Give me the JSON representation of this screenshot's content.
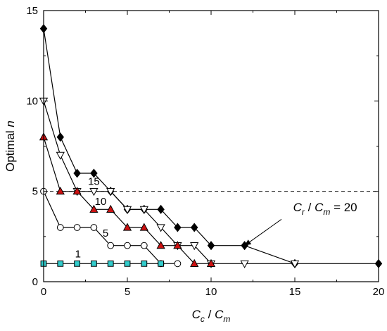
{
  "chart_data": {
    "type": "line",
    "xlabel": {
      "main": "C",
      "sub1": "c",
      "sep": " / ",
      "main2": "C",
      "sub2": "m"
    },
    "ylabel": {
      "prefix": "Optimal ",
      "var": "n"
    },
    "xlim": [
      0,
      20
    ],
    "ylim": [
      0,
      15
    ],
    "xticks": [
      0,
      5,
      10,
      15,
      20
    ],
    "yticks": [
      0,
      5,
      10,
      15
    ],
    "grid": false,
    "reference_line": {
      "y": 5,
      "style": "dashed"
    },
    "series": [
      {
        "label": "20",
        "marker": "diamond",
        "fill": "#000000",
        "stroke": "#000000",
        "x": [
          0,
          1,
          2,
          3,
          4,
          5,
          6,
          7,
          8,
          9,
          10,
          12,
          15,
          20
        ],
        "y": [
          14,
          8,
          6,
          6,
          5,
          4,
          4,
          4,
          3,
          3,
          2,
          2,
          1,
          1
        ]
      },
      {
        "label": "15",
        "marker": "triangle-down",
        "fill": "#ffffff",
        "stroke": "#000000",
        "x": [
          0,
          1,
          2,
          3,
          4,
          5,
          6,
          7,
          8,
          9,
          10,
          12,
          15
        ],
        "y": [
          10,
          7,
          5,
          5,
          5,
          4,
          4,
          3,
          2,
          2,
          1,
          1,
          1
        ]
      },
      {
        "label": "10",
        "marker": "triangle-up",
        "fill": "#cc1111",
        "stroke": "#000000",
        "x": [
          0,
          1,
          2,
          3,
          4,
          5,
          6,
          7,
          8,
          9,
          10
        ],
        "y": [
          8,
          5,
          5,
          4,
          4,
          3,
          3,
          2,
          2,
          1,
          1
        ]
      },
      {
        "label": "5",
        "marker": "circle",
        "fill": "#ffffff",
        "stroke": "#000000",
        "x": [
          0,
          1,
          2,
          3,
          4,
          5,
          6,
          7,
          8
        ],
        "y": [
          5,
          3,
          3,
          3,
          2,
          2,
          2,
          1,
          1
        ]
      },
      {
        "label": "1",
        "marker": "square",
        "fill": "#33cccc",
        "stroke": "#000000",
        "x": [
          0,
          1,
          2,
          3,
          4,
          5,
          6,
          7
        ],
        "y": [
          1,
          1,
          1,
          1,
          1,
          1,
          1,
          1
        ]
      }
    ],
    "annotation": {
      "main": "C",
      "sub1": "r",
      "sep": " / ",
      "main2": "C",
      "sub2": "m",
      "tail": " = 20",
      "target": {
        "x": 12,
        "y": 2
      }
    }
  }
}
